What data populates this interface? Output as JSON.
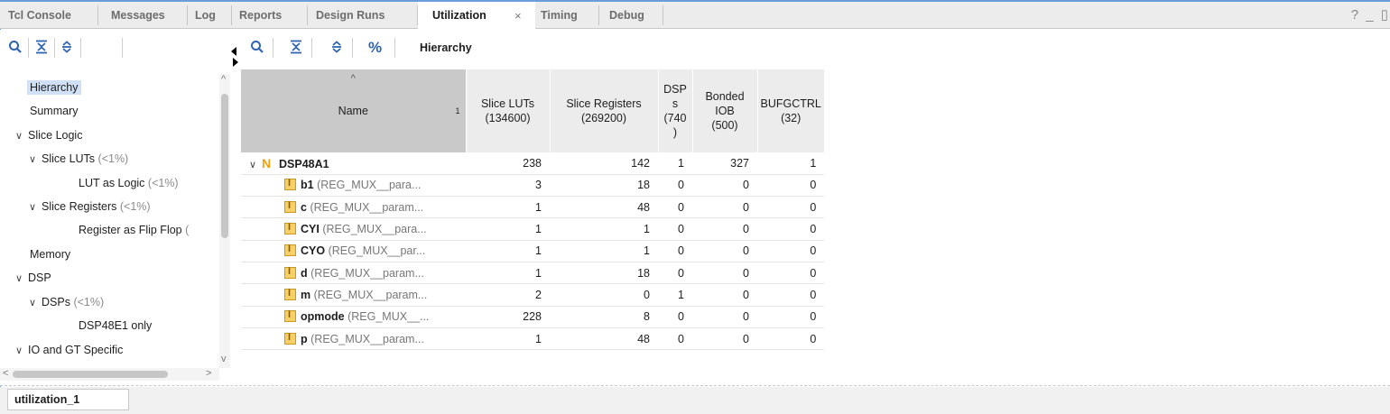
{
  "tabs": [
    {
      "label": "Tcl Console"
    },
    {
      "label": "Messages"
    },
    {
      "label": "Log"
    },
    {
      "label": "Reports"
    },
    {
      "label": "Design Runs"
    },
    {
      "label": "Utilization"
    },
    {
      "label": "Timing"
    },
    {
      "label": "Debug"
    }
  ],
  "tab_close": "×",
  "window_buttons": "? _ ▯",
  "left_tree": [
    {
      "label": "Hierarchy",
      "pct": ""
    },
    {
      "label": "Summary",
      "pct": ""
    },
    {
      "label": "Slice Logic",
      "pct": ""
    },
    {
      "label": "Slice LUTs",
      "pct": "(<1%)"
    },
    {
      "label": "LUT as Logic",
      "pct": "(<1%)"
    },
    {
      "label": "Slice Registers",
      "pct": "(<1%)"
    },
    {
      "label": "Register as Flip Flop",
      "pct": "("
    },
    {
      "label": "Memory",
      "pct": ""
    },
    {
      "label": "DSP",
      "pct": ""
    },
    {
      "label": "DSPs",
      "pct": "(<1%)"
    },
    {
      "label": "DSP48E1 only",
      "pct": ""
    },
    {
      "label": "IO and GT Specific",
      "pct": ""
    }
  ],
  "right_title": "Hierarchy",
  "table": {
    "headers": {
      "name": "Name",
      "sort_index": "1",
      "col1": [
        "Slice LUTs",
        "(134600)"
      ],
      "col2": [
        "Slice Registers",
        "(269200)"
      ],
      "col3": [
        "DSP",
        "s",
        "(740",
        ")"
      ],
      "col4": [
        "Bonded IOB",
        "(500)"
      ],
      "col5": [
        "BUFGCTRL",
        "(32)"
      ]
    },
    "rows": [
      {
        "inst": "DSP48A1",
        "module": "",
        "v": [
          "238",
          "142",
          "1",
          "327",
          "1"
        ]
      },
      {
        "inst": "b1",
        "module": "(REG_MUX__para...",
        "v": [
          "3",
          "18",
          "0",
          "0",
          "0"
        ]
      },
      {
        "inst": "c",
        "module": "(REG_MUX__param...",
        "v": [
          "1",
          "48",
          "0",
          "0",
          "0"
        ]
      },
      {
        "inst": "CYI",
        "module": "(REG_MUX__para...",
        "v": [
          "1",
          "1",
          "0",
          "0",
          "0"
        ]
      },
      {
        "inst": "CYO",
        "module": "(REG_MUX__par...",
        "v": [
          "1",
          "1",
          "0",
          "0",
          "0"
        ]
      },
      {
        "inst": "d",
        "module": "(REG_MUX__param...",
        "v": [
          "1",
          "18",
          "0",
          "0",
          "0"
        ]
      },
      {
        "inst": "m",
        "module": "(REG_MUX__param...",
        "v": [
          "2",
          "0",
          "1",
          "0",
          "0"
        ]
      },
      {
        "inst": "opmode",
        "module": "(REG_MUX__...",
        "v": [
          "228",
          "8",
          "0",
          "0",
          "0"
        ]
      },
      {
        "inst": "p",
        "module": "(REG_MUX__param...",
        "v": [
          "1",
          "48",
          "0",
          "0",
          "0"
        ]
      }
    ]
  },
  "bottom_tab": "utilization_1",
  "colors": {
    "accent": "#6b9bd8",
    "selection": "#cfe0f7",
    "instance_icon": "#f6cf67",
    "top_icon": "#f0a30a"
  }
}
